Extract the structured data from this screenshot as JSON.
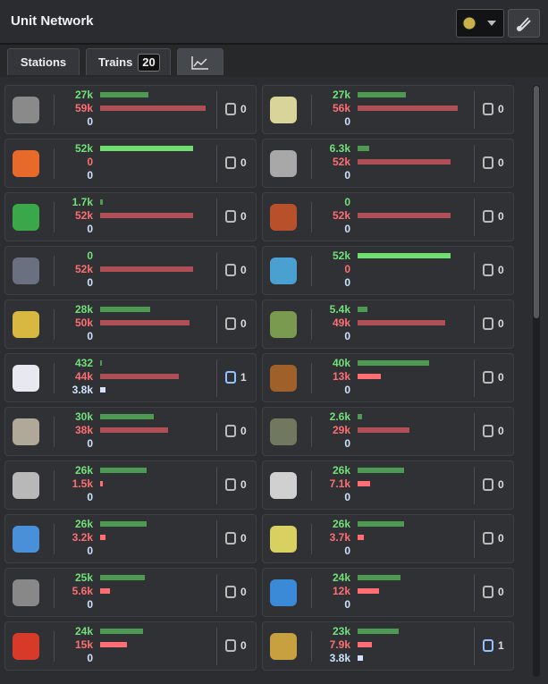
{
  "header": {
    "title": "Unit Network"
  },
  "tabs": {
    "stations": "Stations",
    "trains": "Trains",
    "trains_count": 20
  },
  "resources": [
    {
      "produced": {
        "value": 27000,
        "label": "27k"
      },
      "consumed": {
        "value": 59000,
        "label": "59k"
      },
      "stored": 0,
      "trains": 0
    },
    {
      "produced": {
        "value": 27000,
        "label": "27k"
      },
      "consumed": {
        "value": 56000,
        "label": "56k"
      },
      "stored": 0,
      "trains": 0
    },
    {
      "produced": {
        "value": 52000,
        "label": "52k"
      },
      "consumed": 0,
      "stored": 0,
      "trains": 0
    },
    {
      "produced": {
        "value": 6300,
        "label": "6.3k"
      },
      "consumed": {
        "value": 52000,
        "label": "52k"
      },
      "stored": 0,
      "trains": 0
    },
    {
      "produced": {
        "value": 1700,
        "label": "1.7k"
      },
      "consumed": {
        "value": 52000,
        "label": "52k"
      },
      "stored": 0,
      "trains": 0
    },
    {
      "produced": 0,
      "consumed": {
        "value": 52000,
        "label": "52k"
      },
      "stored": 0,
      "trains": 0
    },
    {
      "produced": 0,
      "consumed": {
        "value": 52000,
        "label": "52k"
      },
      "stored": 0,
      "trains": 0
    },
    {
      "produced": {
        "value": 52000,
        "label": "52k"
      },
      "consumed": 0,
      "stored": 0,
      "trains": 0
    },
    {
      "produced": {
        "value": 28000,
        "label": "28k"
      },
      "consumed": {
        "value": 50000,
        "label": "50k"
      },
      "stored": 0,
      "trains": 0
    },
    {
      "produced": {
        "value": 5400,
        "label": "5.4k"
      },
      "consumed": {
        "value": 49000,
        "label": "49k"
      },
      "stored": 0,
      "trains": 0
    },
    {
      "produced": 432,
      "consumed": {
        "value": 44000,
        "label": "44k"
      },
      "stored": {
        "value": 3800,
        "label": "3.8k"
      },
      "trains": 1
    },
    {
      "produced": {
        "value": 40000,
        "label": "40k"
      },
      "consumed": {
        "value": 13000,
        "label": "13k"
      },
      "stored": 0,
      "trains": 0
    },
    {
      "produced": {
        "value": 30000,
        "label": "30k"
      },
      "consumed": {
        "value": 38000,
        "label": "38k"
      },
      "stored": 0,
      "trains": 0
    },
    {
      "produced": {
        "value": 2600,
        "label": "2.6k"
      },
      "consumed": {
        "value": 29000,
        "label": "29k"
      },
      "stored": 0,
      "trains": 0
    },
    {
      "produced": {
        "value": 26000,
        "label": "26k"
      },
      "consumed": {
        "value": 1500,
        "label": "1.5k"
      },
      "stored": 0,
      "trains": 0
    },
    {
      "produced": {
        "value": 26000,
        "label": "26k"
      },
      "consumed": {
        "value": 7100,
        "label": "7.1k"
      },
      "stored": 0,
      "trains": 0
    },
    {
      "produced": {
        "value": 26000,
        "label": "26k"
      },
      "consumed": {
        "value": 3200,
        "label": "3.2k"
      },
      "stored": 0,
      "trains": 0
    },
    {
      "produced": {
        "value": 26000,
        "label": "26k"
      },
      "consumed": {
        "value": 3700,
        "label": "3.7k"
      },
      "stored": 0,
      "trains": 0
    },
    {
      "produced": {
        "value": 25000,
        "label": "25k"
      },
      "consumed": {
        "value": 5600,
        "label": "5.6k"
      },
      "stored": 0,
      "trains": 0
    },
    {
      "produced": {
        "value": 24000,
        "label": "24k"
      },
      "consumed": {
        "value": 12000,
        "label": "12k"
      },
      "stored": 0,
      "trains": 0
    },
    {
      "produced": {
        "value": 24000,
        "label": "24k"
      },
      "consumed": {
        "value": 15000,
        "label": "15k"
      },
      "stored": 0,
      "trains": 0
    },
    {
      "produced": {
        "value": 23000,
        "label": "23k"
      },
      "consumed": {
        "value": 7900,
        "label": "7.9k"
      },
      "stored": {
        "value": 3800,
        "label": "3.8k"
      },
      "trains": 1
    }
  ]
}
